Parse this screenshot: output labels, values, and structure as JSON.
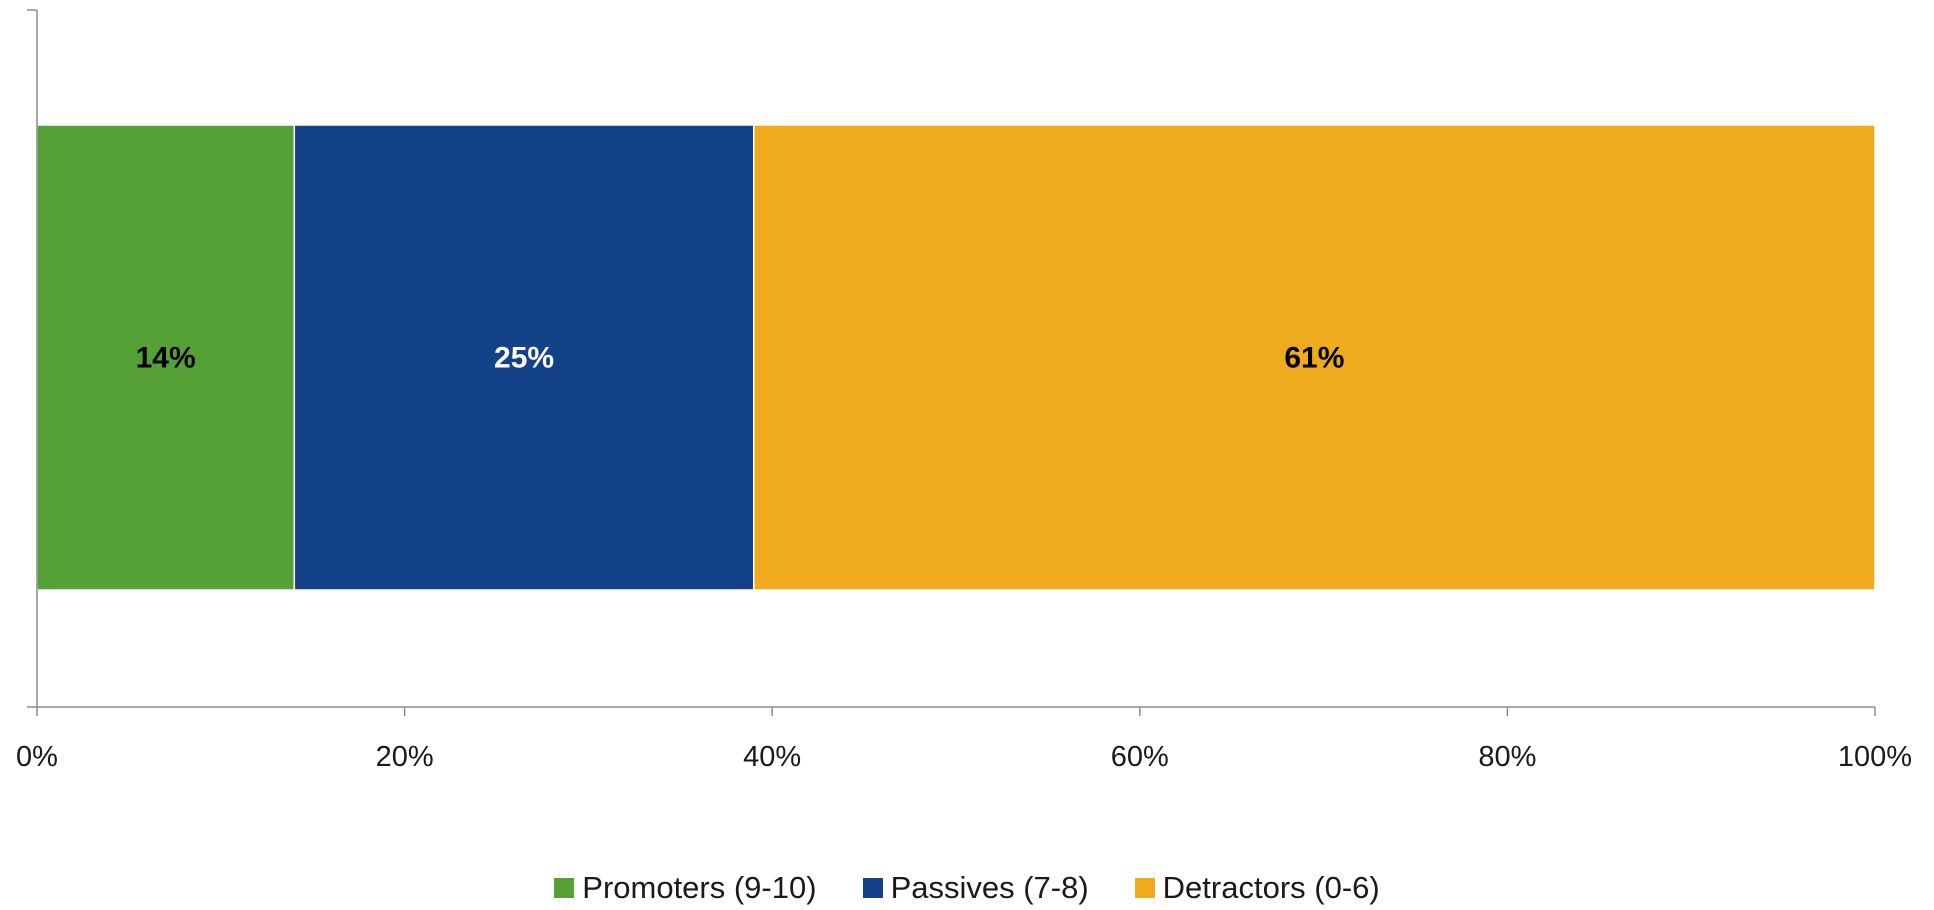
{
  "chart_data": {
    "type": "bar",
    "orientation": "horizontal",
    "stacked": true,
    "categories": [
      ""
    ],
    "series": [
      {
        "name": "Promoters (9-10)",
        "values": [
          14
        ],
        "label": "14%",
        "color": "#56a136",
        "label_color": "#000000"
      },
      {
        "name": "Passives (7-8)",
        "values": [
          25
        ],
        "label": "25%",
        "color": "#134288",
        "label_color": "#ffffff"
      },
      {
        "name": "Detractors (0-6)",
        "values": [
          61
        ],
        "label": "61%",
        "color": "#f0aa1e",
        "label_color": "#000000"
      }
    ],
    "xlim": [
      0,
      100
    ],
    "xticks": [
      "0%",
      "20%",
      "40%",
      "60%",
      "80%",
      "100%"
    ],
    "grid": false,
    "legend_position": "bottom"
  }
}
